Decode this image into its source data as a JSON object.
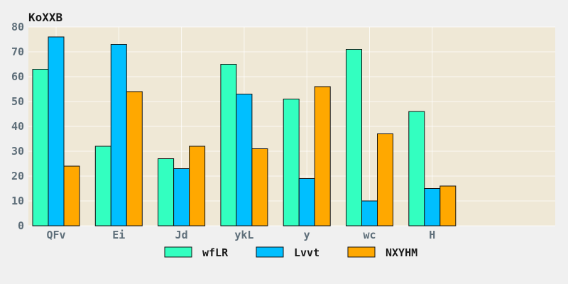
{
  "chart_data": {
    "type": "bar",
    "title": "KoXXB",
    "xlabel": "",
    "ylabel": "",
    "categories": [
      "QFv",
      "Ei",
      "Jd",
      "ykL",
      "y",
      "wc",
      "H"
    ],
    "series": [
      {
        "name": "wfLR",
        "color": "#33ffc0",
        "values": [
          63,
          32,
          27,
          65,
          51,
          71,
          46
        ]
      },
      {
        "name": "Lvvt",
        "color": "#00bfff",
        "values": [
          76,
          73,
          23,
          53,
          19,
          10,
          15
        ]
      },
      {
        "name": "NXYHM",
        "color": "#ffa800",
        "values": [
          24,
          54,
          32,
          31,
          56,
          37,
          16
        ]
      }
    ],
    "ylim": [
      0,
      80
    ],
    "yticks": [
      0,
      10,
      20,
      30,
      40,
      50,
      60,
      70,
      80
    ],
    "grid": true,
    "legend_position": "bottom-center",
    "plot_background": "#efe8d6",
    "page_background": "#f0f0f0"
  }
}
